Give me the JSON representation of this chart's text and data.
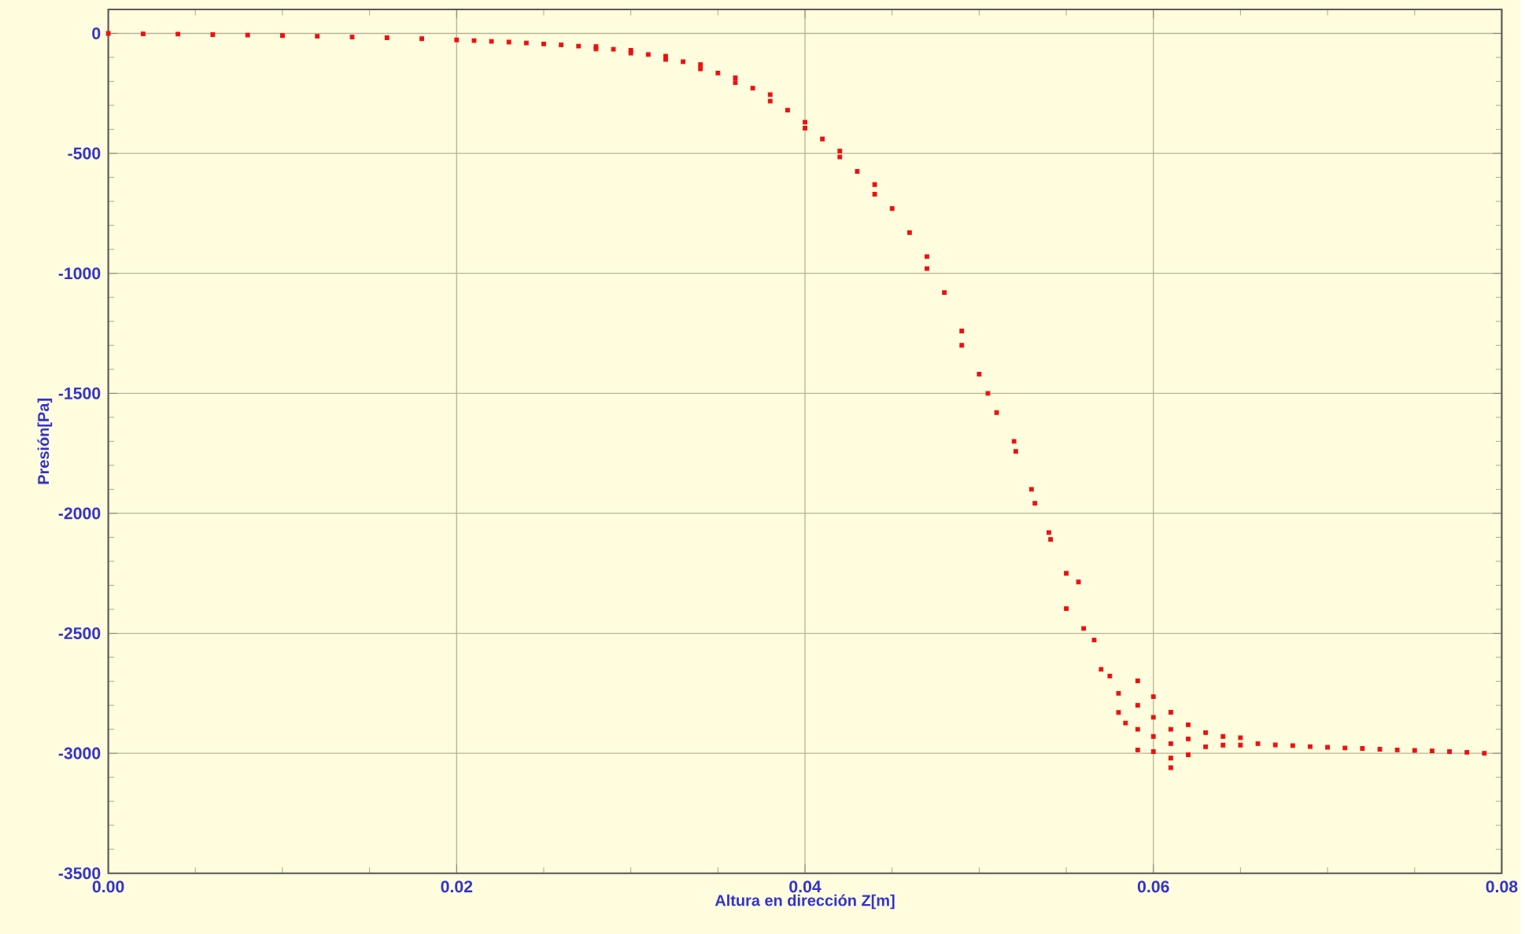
{
  "chart_data": {
    "type": "scatter",
    "xlabel": "Altura en dirección Z[m]",
    "ylabel": "Presión[Pa]",
    "xlim": [
      0,
      0.08
    ],
    "ylim": [
      -3500,
      100
    ],
    "xticks": [
      {
        "value": 0,
        "label": "0.00"
      },
      0.02,
      0.04,
      0.06,
      0.08
    ],
    "yticks": [
      -3500,
      -3000,
      -2500,
      -2000,
      -1500,
      -1000,
      -500,
      0
    ],
    "grid": true,
    "marker": "square",
    "series": [
      {
        "color": "#ee1111",
        "x": [
          0,
          0.002,
          0.004,
          0.006,
          0.008,
          0.01,
          0.012,
          0.014,
          0.016,
          0.018,
          0.02,
          0.021,
          0.022,
          0.023,
          0.024,
          0.025,
          0.026,
          0.027,
          0.028,
          0.028,
          0.029,
          0.03,
          0.03,
          0.031,
          0.032,
          0.032,
          0.033,
          0.034,
          0.034,
          0.035,
          0.036,
          0.036,
          0.037,
          0.038,
          0.038,
          0.039,
          0.04,
          0.04,
          0.041,
          0.042,
          0.042,
          0.043,
          0.044,
          0.044,
          0.045,
          0.046,
          0.047,
          0.047,
          0.048,
          0.049,
          0.049,
          0.05,
          0.0505,
          0.051,
          0.052,
          0.0521,
          0.053,
          0.0532,
          0.054,
          0.0541,
          0.055,
          0.055,
          0.0557,
          0.056,
          0.0566,
          0.057,
          0.0575,
          0.058,
          0.058,
          0.0584,
          0.0591,
          0.0591,
          0.0591,
          0.0591,
          0.06,
          0.06,
          0.06,
          0.06,
          0.061,
          0.061,
          0.061,
          0.061,
          0.061,
          0.062,
          0.062,
          0.062,
          0.063,
          0.063,
          0.064,
          0.064,
          0.065,
          0.065,
          0.066,
          0.067,
          0.068,
          0.069,
          0.07,
          0.071,
          0.072,
          0.073,
          0.074,
          0.075,
          0.076,
          0.077,
          0.078,
          0.079
        ],
        "values": [
          0,
          -2,
          -3,
          -5,
          -7,
          -9,
          -12,
          -15,
          -18,
          -22,
          -27,
          -30,
          -33,
          -36,
          -40,
          -44,
          -48,
          -53,
          -55,
          -65,
          -66,
          -70,
          -82,
          -88,
          -95,
          -108,
          -118,
          -130,
          -148,
          -165,
          -185,
          -205,
          -228,
          -255,
          -282,
          -320,
          -370,
          -395,
          -440,
          -490,
          -515,
          -575,
          -630,
          -670,
          -730,
          -830,
          -930,
          -980,
          -1080,
          -1240,
          -1300,
          -1420,
          -1500,
          -1580,
          -1700,
          -1742,
          -1900,
          -1958,
          -2080,
          -2109,
          -2250,
          -2397,
          -2286,
          -2480,
          -2528,
          -2650,
          -2678,
          -2750,
          -2830,
          -2874,
          -2698,
          -2800,
          -2900,
          -2986,
          -2764,
          -2850,
          -2930,
          -2993,
          -2829,
          -2900,
          -2960,
          -3020,
          -3060,
          -2881,
          -2940,
          -3006,
          -2914,
          -2973,
          -2930,
          -2966,
          -2935,
          -2966,
          -2960,
          -2965,
          -2968,
          -2972,
          -2975,
          -2978,
          -2980,
          -2983,
          -2986,
          -2988,
          -2990,
          -2993,
          -2996,
          -3000
        ]
      }
    ]
  }
}
